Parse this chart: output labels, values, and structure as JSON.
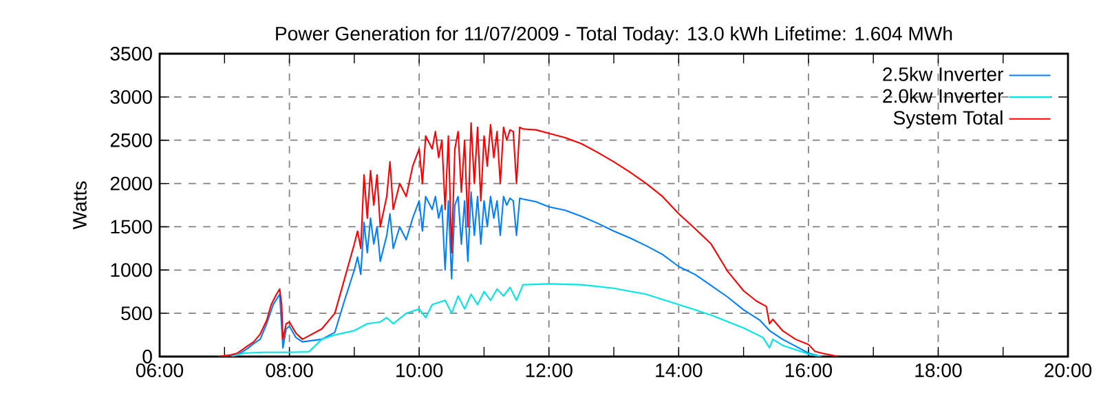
{
  "chart_data": {
    "type": "line",
    "title": "Power Generation for 11/07/2009 - Total Today: 13.0 kWh   Lifetime: 1.604 MWh",
    "ylabel": "Watts",
    "xlim": [
      6,
      20
    ],
    "ylim": [
      0,
      3500
    ],
    "xticks": [
      {
        "value": 6,
        "label": "06:00"
      },
      {
        "value": 7,
        "label": null
      },
      {
        "value": 8,
        "label": "08:00"
      },
      {
        "value": 9,
        "label": null
      },
      {
        "value": 10,
        "label": "10:00"
      },
      {
        "value": 11,
        "label": null
      },
      {
        "value": 12,
        "label": "12:00"
      },
      {
        "value": 13,
        "label": null
      },
      {
        "value": 14,
        "label": "14:00"
      },
      {
        "value": 15,
        "label": null
      },
      {
        "value": 16,
        "label": "16:00"
      },
      {
        "value": 17,
        "label": null
      },
      {
        "value": 18,
        "label": "18:00"
      },
      {
        "value": 19,
        "label": null
      },
      {
        "value": 20,
        "label": "20:00"
      }
    ],
    "yticks": [
      0,
      500,
      1000,
      1500,
      2000,
      2500,
      3000,
      3500
    ],
    "grid": true,
    "legend": "top right",
    "marker": "none",
    "line_style": "solid",
    "series": [
      {
        "name": "2.5kw Inverter",
        "color": "#0080ff",
        "x": [
          6.9,
          7.2,
          7.35,
          7.45,
          7.55,
          7.65,
          7.75,
          7.85,
          7.9,
          7.95,
          8.0,
          8.1,
          8.2,
          8.3,
          8.5,
          8.7,
          8.85,
          9.0,
          9.05,
          9.1,
          9.15,
          9.2,
          9.25,
          9.3,
          9.35,
          9.4,
          9.5,
          9.55,
          9.6,
          9.7,
          9.8,
          9.9,
          10.0,
          10.05,
          10.1,
          10.2,
          10.25,
          10.3,
          10.35,
          10.4,
          10.45,
          10.5,
          10.55,
          10.6,
          10.65,
          10.7,
          10.75,
          10.8,
          10.85,
          10.9,
          10.95,
          11.0,
          11.05,
          11.1,
          11.15,
          11.2,
          11.25,
          11.3,
          11.35,
          11.4,
          11.45,
          11.5,
          11.55,
          11.6,
          11.8,
          12.0,
          12.25,
          12.5,
          12.75,
          13.0,
          13.25,
          13.5,
          13.75,
          14.0,
          14.25,
          14.5,
          14.75,
          15.0,
          15.25,
          15.4,
          15.6,
          15.8,
          16.0,
          16.1,
          16.2
        ],
        "values": [
          0,
          20,
          90,
          150,
          200,
          380,
          600,
          720,
          100,
          320,
          350,
          220,
          170,
          180,
          200,
          280,
          650,
          1000,
          1150,
          950,
          1550,
          1200,
          1600,
          1300,
          1500,
          1100,
          1400,
          1650,
          1250,
          1500,
          1350,
          1600,
          1800,
          1450,
          1850,
          1700,
          1850,
          1600,
          1750,
          1000,
          1800,
          900,
          1750,
          1850,
          1300,
          1800,
          1100,
          1900,
          1400,
          1850,
          1300,
          1800,
          1500,
          1850,
          1600,
          1800,
          1400,
          1850,
          1750,
          1830,
          1800,
          1400,
          1830,
          1820,
          1790,
          1730,
          1690,
          1620,
          1540,
          1450,
          1370,
          1280,
          1180,
          1040,
          950,
          820,
          690,
          540,
          420,
          300,
          200,
          120,
          40,
          20,
          0
        ]
      },
      {
        "name": "2.0kw Inverter",
        "color": "#00e5e5",
        "x": [
          7.1,
          7.3,
          7.6,
          8.0,
          8.3,
          8.5,
          8.7,
          9.0,
          9.2,
          9.4,
          9.5,
          9.6,
          9.8,
          10.0,
          10.1,
          10.2,
          10.4,
          10.5,
          10.6,
          10.7,
          10.8,
          10.9,
          11.0,
          11.1,
          11.2,
          11.3,
          11.4,
          11.5,
          11.6,
          12.0,
          12.5,
          13.0,
          13.5,
          14.0,
          14.5,
          15.0,
          15.3,
          15.4,
          15.45,
          15.6,
          15.8,
          16.0,
          16.2
        ],
        "values": [
          0,
          40,
          50,
          50,
          55,
          200,
          250,
          300,
          380,
          400,
          450,
          380,
          500,
          550,
          450,
          600,
          650,
          500,
          700,
          550,
          720,
          600,
          750,
          650,
          780,
          700,
          800,
          650,
          830,
          840,
          830,
          790,
          720,
          600,
          480,
          330,
          220,
          100,
          200,
          130,
          80,
          30,
          0
        ]
      },
      {
        "name": "System Total",
        "color": "#ff0000",
        "x": [
          6.9,
          7.1,
          7.2,
          7.35,
          7.45,
          7.55,
          7.65,
          7.72,
          7.8,
          7.85,
          7.88,
          7.9,
          7.95,
          8.0,
          8.1,
          8.2,
          8.3,
          8.5,
          8.7,
          8.85,
          9.0,
          9.05,
          9.1,
          9.15,
          9.2,
          9.25,
          9.3,
          9.35,
          9.4,
          9.5,
          9.55,
          9.6,
          9.7,
          9.8,
          9.9,
          10.0,
          10.05,
          10.1,
          10.2,
          10.25,
          10.3,
          10.35,
          10.4,
          10.45,
          10.5,
          10.55,
          10.6,
          10.65,
          10.7,
          10.75,
          10.8,
          10.85,
          10.9,
          10.95,
          11.0,
          11.05,
          11.1,
          11.15,
          11.2,
          11.25,
          11.3,
          11.35,
          11.4,
          11.45,
          11.5,
          11.55,
          11.6,
          11.8,
          12.0,
          12.25,
          12.5,
          12.75,
          13.0,
          13.25,
          13.5,
          13.75,
          14.0,
          14.25,
          14.5,
          14.75,
          15.0,
          15.2,
          15.35,
          15.4,
          15.45,
          15.6,
          15.8,
          16.0,
          16.1,
          16.2,
          16.4,
          16.45
        ],
        "values": [
          0,
          20,
          40,
          120,
          170,
          260,
          420,
          600,
          720,
          780,
          600,
          200,
          380,
          400,
          270,
          200,
          240,
          320,
          500,
          900,
          1300,
          1450,
          1250,
          2100,
          1600,
          2150,
          1750,
          2100,
          1500,
          1850,
          2250,
          1700,
          2000,
          1850,
          2200,
          2400,
          2000,
          2550,
          2400,
          2600,
          2300,
          2500,
          1700,
          2550,
          1200,
          2400,
          2600,
          1900,
          2500,
          1500,
          2700,
          2000,
          2650,
          1800,
          2550,
          2200,
          2680,
          2300,
          2600,
          2000,
          2650,
          2500,
          2620,
          2600,
          2000,
          2650,
          2630,
          2620,
          2580,
          2530,
          2460,
          2360,
          2250,
          2130,
          2000,
          1850,
          1650,
          1480,
          1300,
          990,
          760,
          640,
          580,
          380,
          430,
          300,
          200,
          140,
          60,
          40,
          10,
          0
        ]
      }
    ]
  }
}
